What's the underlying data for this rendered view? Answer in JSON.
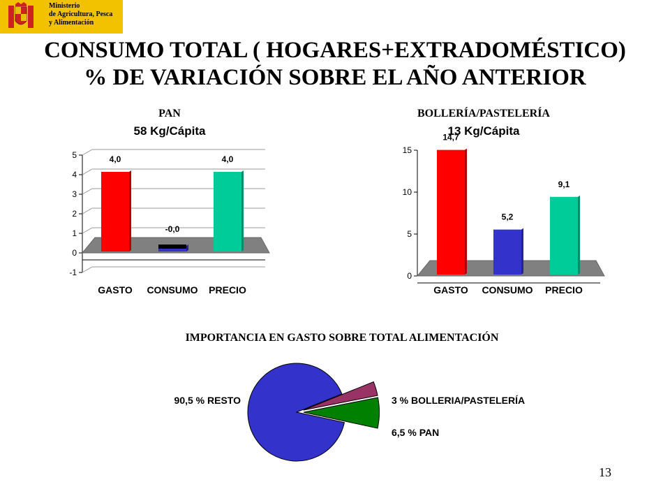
{
  "logo": {
    "line1": "Ministerio",
    "line2": "de Agricultura, Pesca",
    "line3": "y Alimentación"
  },
  "title": {
    "line1": "CONSUMO TOTAL ( HOGARES+EXTRADOMÉSTICO)",
    "line2": "% DE VARIACIÓN SOBRE EL AÑO ANTERIOR"
  },
  "page_number": "13",
  "chart_data": [
    {
      "type": "bar",
      "title": "PAN",
      "subtitle": "58 Kg/Cápita",
      "categories": [
        "GASTO",
        "CONSUMO",
        "PRECIO"
      ],
      "values": [
        4.0,
        -0.0,
        4.0
      ],
      "data_labels": [
        "4,0",
        "-0,0",
        "4,0"
      ],
      "colors": [
        "#ff0000",
        "#3333cc",
        "#00cc99"
      ],
      "ylim": [
        -1,
        5
      ],
      "yticks": [
        -1,
        0,
        1,
        2,
        3,
        4,
        5
      ],
      "grid": true
    },
    {
      "type": "bar",
      "title": "BOLLERÍA/PASTELERÍA",
      "subtitle": "13 Kg/Cápita",
      "categories": [
        "GASTO",
        "CONSUMO",
        "PRECIO"
      ],
      "values": [
        14.7,
        5.2,
        9.1
      ],
      "data_labels": [
        "14,7",
        "5,2",
        "9,1"
      ],
      "colors": [
        "#ff0000",
        "#3333cc",
        "#00cc99"
      ],
      "ylim": [
        0,
        15
      ],
      "yticks": [
        0,
        5,
        10,
        15
      ],
      "grid": false
    },
    {
      "type": "pie",
      "title": "IMPORTANCIA EN GASTO SOBRE TOTAL ALIMENTACIÓN",
      "slices": [
        {
          "label": "90,5 % RESTO",
          "value": 90.5,
          "color": "#3333cc"
        },
        {
          "label": "3 % BOLLERIA/PASTELERÍA",
          "value": 3.0,
          "color": "#993366"
        },
        {
          "label": "6,5 % PAN",
          "value": 6.5,
          "color": "#008000"
        }
      ]
    }
  ]
}
